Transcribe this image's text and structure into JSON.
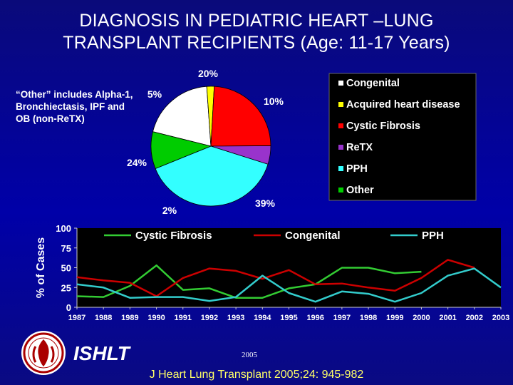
{
  "title": {
    "line1": "DIAGNOSIS IN PEDIATRIC HEART –LUNG",
    "line2": "TRANSPLANT RECIPIENTS (Age: 11-17 Years)"
  },
  "note": "“Other” includes Alpha-1, Bronchiectasis, IPF and OB (non-ReTX)",
  "footer": {
    "org": "ISHLT",
    "year": "2005",
    "citation": "J Heart Lung Transplant 2005;24: 945-982"
  },
  "logo_icon": "ishlt-seal-icon",
  "chart_data": [
    {
      "type": "pie",
      "categories": [
        "Congenital",
        "Acquired heart disease",
        "Cystic Fibrosis",
        "ReTX",
        "PPH",
        "Other"
      ],
      "values": [
        20,
        2,
        24,
        5,
        39,
        10
      ],
      "value_labels": [
        "20%",
        "2%",
        "24%",
        "5%",
        "39%",
        "10%"
      ],
      "colors": [
        "#ffffff",
        "#ffff00",
        "#ff0000",
        "#9933cc",
        "#33ffff",
        "#00cc00"
      ],
      "legend_placement": "right",
      "legend_background": "#000000"
    },
    {
      "type": "line",
      "ylabel": "% of Cases",
      "xlabel": "",
      "x": [
        "1987",
        "1988",
        "1989",
        "1990",
        "1991",
        "1992",
        "1993",
        "1994",
        "1995",
        "1996",
        "1997",
        "1998",
        "1999",
        "2000",
        "2001",
        "2002",
        "2003"
      ],
      "ylim": [
        0,
        100
      ],
      "yticks": [
        0,
        25,
        50,
        75,
        100
      ],
      "legend_placement": "top",
      "grid": false,
      "background": "#000000",
      "series": [
        {
          "name": "Cystic Fibrosis",
          "color": "#33cc33",
          "values": [
            14,
            13,
            27,
            53,
            22,
            24,
            12,
            12,
            24,
            29,
            50,
            50,
            43,
            45,
            null,
            null,
            null
          ]
        },
        {
          "name": "Congenital",
          "color": "#cc0000",
          "values": [
            38,
            34,
            31,
            14,
            37,
            49,
            46,
            36,
            47,
            29,
            30,
            25,
            21,
            37,
            60,
            50,
            null
          ]
        },
        {
          "name": "PPH",
          "color": "#33cccc",
          "values": [
            29,
            25,
            12,
            13,
            13,
            8,
            13,
            40,
            18,
            7,
            20,
            17,
            7,
            18,
            40,
            49,
            25
          ]
        }
      ]
    }
  ]
}
